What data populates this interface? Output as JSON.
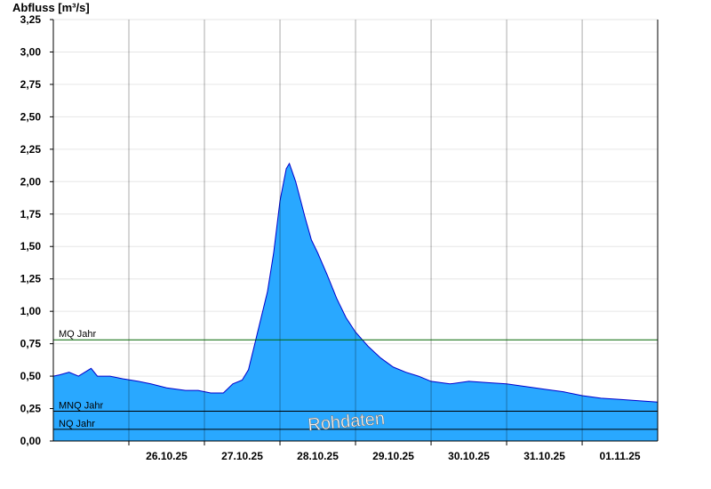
{
  "chart_data": {
    "type": "area",
    "ylabel": "Abfluss [m³/s]",
    "watermark": "Rohdaten",
    "ylim": [
      0,
      3.25
    ],
    "y_ticks": [
      "0,00",
      "0,25",
      "0,50",
      "0,75",
      "1,00",
      "1,25",
      "1,50",
      "1,75",
      "2,00",
      "2,25",
      "2,50",
      "2,75",
      "3,00",
      "3,25"
    ],
    "x_labels": [
      "26.10.25",
      "27.10.25",
      "28.10.25",
      "29.10.25",
      "30.10.25",
      "31.10.25",
      "01.11.25"
    ],
    "x_start": "25.10.25 00:00",
    "x_end": "01.11.25 23:59",
    "grid": true,
    "colors": {
      "fill": "#29a8ff",
      "line": "#0000cc",
      "mq": "#006600",
      "ref": "#000000"
    },
    "reference_lines": [
      {
        "name": "MQ Jahr",
        "value": 0.78
      },
      {
        "name": "MNQ Jahr",
        "value": 0.23
      },
      {
        "name": "NQ Jahr",
        "value": 0.09
      }
    ],
    "series": [
      {
        "x": [
          "25.10.25 00:00",
          "25.10.25 02:00",
          "25.10.25 05:00",
          "25.10.25 08:00",
          "25.10.25 12:00",
          "25.10.25 14:00",
          "25.10.25 18:00",
          "25.10.25 22:00",
          "26.10.25 03:00",
          "26.10.25 07:00",
          "26.10.25 12:00",
          "26.10.25 18:00",
          "26.10.25 22:00",
          "27.10.25 02:00",
          "27.10.25 06:00",
          "27.10.25 09:00",
          "27.10.25 12:00",
          "27.10.25 14:00",
          "27.10.25 16:00",
          "27.10.25 18:00",
          "27.10.25 20:00",
          "27.10.25 22:00",
          "28.10.25 00:00",
          "28.10.25 02:00",
          "28.10.25 03:00",
          "28.10.25 05:00",
          "28.10.25 08:00",
          "28.10.25 10:00",
          "28.10.25 12:00",
          "28.10.25 15:00",
          "28.10.25 18:00",
          "28.10.25 21:00",
          "29.10.25 00:00",
          "29.10.25 04:00",
          "29.10.25 08:00",
          "29.10.25 12:00",
          "29.10.25 16:00",
          "29.10.25 20:00",
          "30.10.25 00:00",
          "30.10.25 06:00",
          "30.10.25 12:00",
          "30.10.25 18:00",
          "31.10.25 00:00",
          "31.10.25 06:00",
          "31.10.25 12:00",
          "31.10.25 18:00",
          "01.11.25 00:00",
          "01.11.25 06:00",
          "01.11.25 12:00",
          "01.11.25 18:00",
          "01.11.25 23:59"
        ],
        "y": [
          0.5,
          0.51,
          0.53,
          0.5,
          0.56,
          0.5,
          0.5,
          0.48,
          0.46,
          0.44,
          0.41,
          0.39,
          0.39,
          0.37,
          0.37,
          0.44,
          0.47,
          0.55,
          0.75,
          0.95,
          1.15,
          1.45,
          1.85,
          2.1,
          2.14,
          2.0,
          1.72,
          1.55,
          1.45,
          1.28,
          1.1,
          0.95,
          0.84,
          0.73,
          0.64,
          0.57,
          0.53,
          0.5,
          0.46,
          0.44,
          0.46,
          0.45,
          0.44,
          0.42,
          0.4,
          0.38,
          0.35,
          0.33,
          0.32,
          0.31,
          0.3
        ]
      }
    ]
  }
}
